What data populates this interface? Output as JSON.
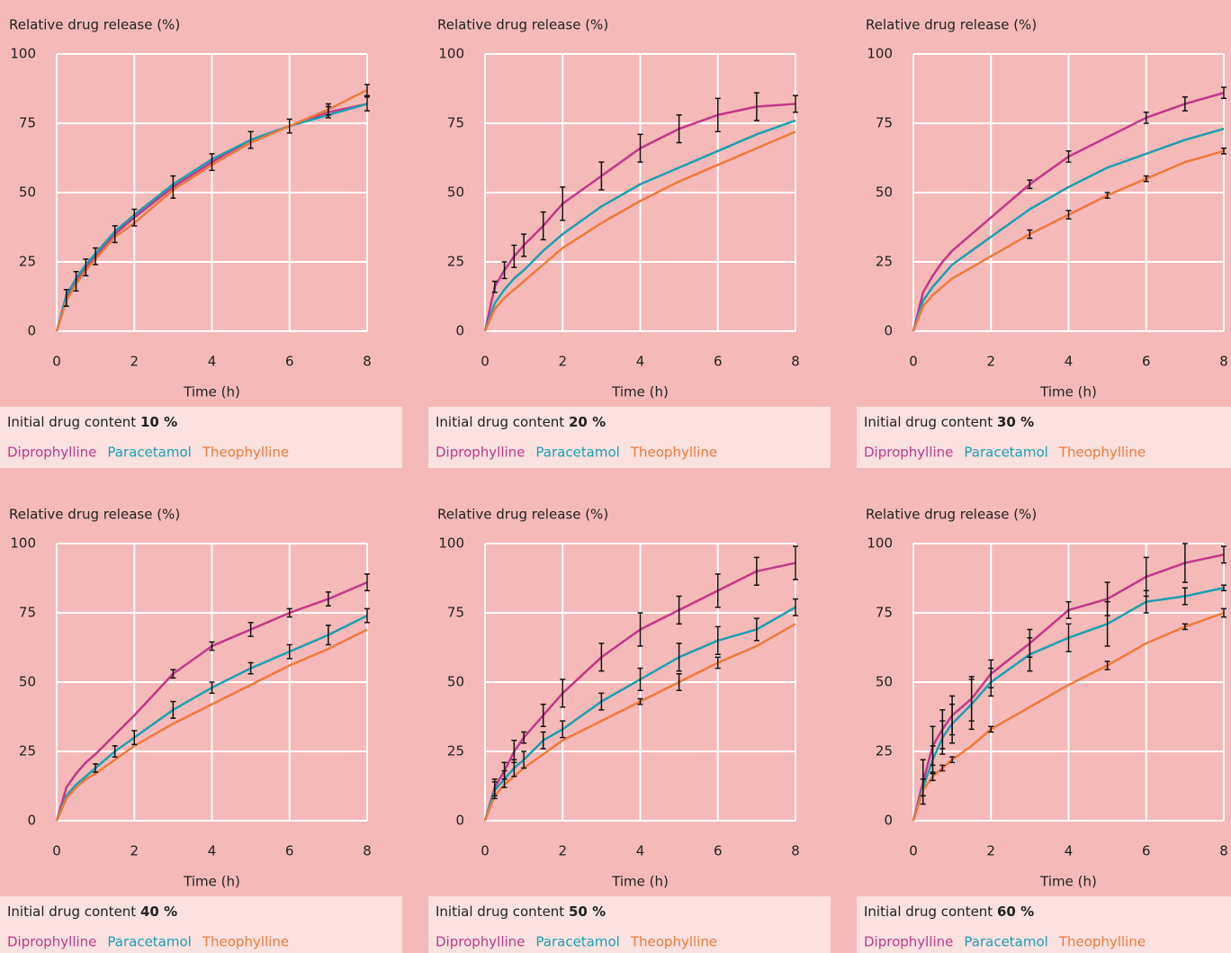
{
  "chart_data": [
    {
      "type": "line",
      "y_label": "Relative drug release (%)",
      "x_label": "Time (h)",
      "caption": "Initial drug content",
      "content": "10 %",
      "xlim": [
        0,
        8
      ],
      "ylim": [
        0,
        100
      ],
      "xticks": [
        0,
        2,
        4,
        6,
        8
      ],
      "yticks": [
        0,
        25,
        50,
        75,
        100
      ],
      "grid": true,
      "x": [
        0,
        0.25,
        0.5,
        0.75,
        1,
        1.5,
        2,
        3,
        4,
        5,
        6,
        7,
        8
      ],
      "series": [
        {
          "name": "Diprophylline",
          "color": "#c0388a",
          "values": [
            0,
            12,
            18,
            23,
            27,
            35,
            41,
            52,
            61,
            69,
            74,
            79,
            82
          ],
          "errors": [
            null,
            3,
            3.5,
            3,
            3,
            3,
            3,
            4,
            3,
            3,
            2.5,
            2,
            2.5
          ]
        },
        {
          "name": "Paracetamol",
          "color": "#1aa0b0",
          "values": [
            0,
            13,
            19,
            24,
            28,
            36,
            42,
            53,
            62,
            69,
            74,
            78,
            82
          ],
          "errors": [
            null,
            null,
            null,
            null,
            null,
            null,
            null,
            null,
            null,
            null,
            null,
            null,
            null
          ]
        },
        {
          "name": "Theophylline",
          "color": "#ee7a3a",
          "values": [
            0,
            11,
            17,
            22,
            26,
            34,
            39,
            51,
            60,
            68,
            74,
            80,
            87
          ],
          "errors": [
            null,
            null,
            null,
            null,
            null,
            null,
            null,
            null,
            null,
            null,
            null,
            2,
            2
          ]
        }
      ]
    },
    {
      "type": "line",
      "y_label": "Relative drug release (%)",
      "x_label": "Time (h)",
      "caption": "Initial drug content",
      "content": "20 %",
      "xlim": [
        0,
        8
      ],
      "ylim": [
        0,
        100
      ],
      "xticks": [
        0,
        2,
        4,
        6,
        8
      ],
      "yticks": [
        0,
        25,
        50,
        75,
        100
      ],
      "grid": true,
      "x": [
        0,
        0.25,
        0.5,
        0.75,
        1,
        1.5,
        2,
        3,
        4,
        5,
        6,
        7,
        8
      ],
      "series": [
        {
          "name": "Diprophylline",
          "color": "#c0388a",
          "values": [
            0,
            16,
            22,
            27,
            31,
            38,
            46,
            56,
            66,
            73,
            78,
            81,
            82
          ],
          "errors": [
            null,
            2,
            3,
            4,
            4,
            5,
            6,
            5,
            5,
            5,
            6,
            5,
            3
          ]
        },
        {
          "name": "Paracetamol",
          "color": "#1aa0b0",
          "values": [
            0,
            10,
            15,
            19,
            22,
            29,
            35,
            45,
            53,
            59,
            65,
            71,
            76
          ],
          "errors": [
            null,
            null,
            null,
            null,
            null,
            null,
            null,
            null,
            null,
            null,
            null,
            null,
            null
          ]
        },
        {
          "name": "Theophylline",
          "color": "#ee7a3a",
          "values": [
            0,
            8,
            12,
            15,
            18,
            24,
            30,
            39,
            47,
            54,
            60,
            66,
            72
          ],
          "errors": [
            null,
            null,
            null,
            null,
            null,
            null,
            null,
            null,
            null,
            null,
            null,
            null,
            null
          ]
        }
      ]
    },
    {
      "type": "line",
      "y_label": "Relative drug release (%)",
      "x_label": "Time (h)",
      "caption": "Initial drug content",
      "content": "30 %",
      "xlim": [
        0,
        8
      ],
      "ylim": [
        0,
        100
      ],
      "xticks": [
        0,
        2,
        4,
        6,
        8
      ],
      "yticks": [
        0,
        25,
        50,
        75,
        100
      ],
      "grid": true,
      "x": [
        0,
        0.25,
        0.5,
        0.75,
        1,
        1.5,
        2,
        3,
        4,
        5,
        6,
        7,
        8
      ],
      "series": [
        {
          "name": "Diprophylline",
          "color": "#c0388a",
          "values": [
            0,
            14,
            20,
            25,
            29,
            35,
            41,
            53,
            63,
            70,
            77,
            82,
            86
          ],
          "errors": [
            null,
            null,
            null,
            null,
            null,
            null,
            null,
            1.5,
            2,
            null,
            2,
            2.5,
            2
          ]
        },
        {
          "name": "Paracetamol",
          "color": "#1aa0b0",
          "values": [
            0,
            11,
            16,
            20,
            24,
            29,
            34,
            44,
            52,
            59,
            64,
            69,
            73
          ],
          "errors": [
            null,
            null,
            null,
            null,
            null,
            null,
            null,
            null,
            null,
            null,
            null,
            null,
            null
          ]
        },
        {
          "name": "Theophylline",
          "color": "#ee7a3a",
          "values": [
            0,
            9,
            13,
            16,
            19,
            23,
            27,
            35,
            42,
            49,
            55,
            61,
            65
          ],
          "errors": [
            null,
            null,
            null,
            null,
            null,
            null,
            null,
            1.5,
            1.5,
            1,
            1,
            null,
            1
          ]
        }
      ]
    },
    {
      "type": "line",
      "y_label": "Relative drug release (%)",
      "x_label": "Time (h)",
      "caption": "Initial drug content",
      "content": "40 %",
      "xlim": [
        0,
        8
      ],
      "ylim": [
        0,
        100
      ],
      "xticks": [
        0,
        2,
        4,
        6,
        8
      ],
      "yticks": [
        0,
        25,
        50,
        75,
        100
      ],
      "grid": true,
      "x": [
        0,
        0.25,
        0.5,
        0.75,
        1,
        1.5,
        2,
        3,
        4,
        5,
        6,
        7,
        8
      ],
      "series": [
        {
          "name": "Diprophylline",
          "color": "#c0388a",
          "values": [
            0,
            12,
            17,
            21,
            24,
            31,
            38,
            53,
            63,
            69,
            75,
            80,
            86
          ],
          "errors": [
            null,
            null,
            null,
            null,
            null,
            null,
            null,
            1.5,
            1.5,
            2.5,
            1.5,
            2.5,
            3
          ]
        },
        {
          "name": "Paracetamol",
          "color": "#1aa0b0",
          "values": [
            0,
            9,
            13,
            16,
            19,
            25,
            30,
            40,
            48,
            55,
            61,
            67,
            74
          ],
          "errors": [
            null,
            null,
            null,
            null,
            1.5,
            2,
            2.5,
            3,
            2,
            2,
            2.5,
            3.5,
            2.5
          ]
        },
        {
          "name": "Theophylline",
          "color": "#ee7a3a",
          "values": [
            0,
            8,
            12,
            15,
            17,
            22,
            27,
            35,
            42,
            49,
            56,
            62,
            69
          ],
          "errors": [
            null,
            null,
            null,
            null,
            null,
            null,
            null,
            null,
            null,
            null,
            null,
            null,
            null
          ]
        }
      ]
    },
    {
      "type": "line",
      "y_label": "Relative drug release (%)",
      "x_label": "Time (h)",
      "caption": "Initial drug content",
      "content": "50 %",
      "xlim": [
        0,
        8
      ],
      "ylim": [
        0,
        100
      ],
      "xticks": [
        0,
        2,
        4,
        6,
        8
      ],
      "yticks": [
        0,
        25,
        50,
        75,
        100
      ],
      "grid": true,
      "x": [
        0,
        0.25,
        0.5,
        0.75,
        1,
        1.5,
        2,
        3,
        4,
        5,
        6,
        7,
        8
      ],
      "series": [
        {
          "name": "Diprophylline",
          "color": "#c0388a",
          "values": [
            0,
            12,
            18,
            25,
            30,
            38,
            46,
            59,
            69,
            76,
            83,
            90,
            93
          ],
          "errors": [
            null,
            3,
            3,
            4,
            2,
            4,
            5,
            5,
            6,
            5,
            6,
            5,
            6
          ]
        },
        {
          "name": "Paracetamol",
          "color": "#1aa0b0",
          "values": [
            0,
            11,
            15,
            19,
            22,
            29,
            33,
            43,
            51,
            59,
            65,
            69,
            77
          ],
          "errors": [
            null,
            3,
            3,
            3,
            3,
            3,
            3,
            3,
            4,
            5,
            5,
            4,
            3
          ]
        },
        {
          "name": "Theophylline",
          "color": "#ee7a3a",
          "values": [
            0,
            9,
            13,
            16,
            19,
            24,
            29,
            36,
            43,
            50,
            57,
            63,
            71
          ],
          "errors": [
            null,
            null,
            null,
            null,
            null,
            null,
            null,
            null,
            1,
            3,
            2,
            null,
            null
          ]
        }
      ]
    },
    {
      "type": "line",
      "y_label": "Relative drug release (%)",
      "x_label": "Time (h)",
      "caption": "Initial drug content",
      "content": "60 %",
      "xlim": [
        0,
        8
      ],
      "ylim": [
        0,
        100
      ],
      "xticks": [
        0,
        2,
        4,
        6,
        8
      ],
      "yticks": [
        0,
        25,
        50,
        75,
        100
      ],
      "grid": true,
      "x": [
        0,
        0.25,
        0.5,
        0.75,
        1,
        1.5,
        2,
        3,
        4,
        5,
        6,
        7,
        8
      ],
      "series": [
        {
          "name": "Diprophylline",
          "color": "#c0388a",
          "values": [
            0,
            14,
            27,
            33,
            38,
            44,
            53,
            64,
            76,
            80,
            88,
            93,
            96
          ],
          "errors": [
            null,
            8,
            7,
            7,
            7,
            8,
            5,
            5,
            3,
            6,
            7,
            7,
            3
          ]
        },
        {
          "name": "Paracetamol",
          "color": "#1aa0b0",
          "values": [
            0,
            12,
            22,
            30,
            35,
            42,
            50,
            60,
            66,
            71,
            79,
            81,
            84
          ],
          "errors": [
            null,
            3,
            5,
            6,
            7,
            9,
            5,
            6,
            5,
            8,
            4,
            3,
            1
          ]
        },
        {
          "name": "Theophylline",
          "color": "#ee7a3a",
          "values": [
            0,
            11,
            16,
            19,
            22,
            27,
            33,
            41,
            49,
            56,
            64,
            70,
            75
          ],
          "errors": [
            null,
            null,
            1.5,
            1,
            1,
            null,
            1,
            null,
            null,
            1.5,
            null,
            1,
            1.5
          ]
        }
      ]
    }
  ]
}
